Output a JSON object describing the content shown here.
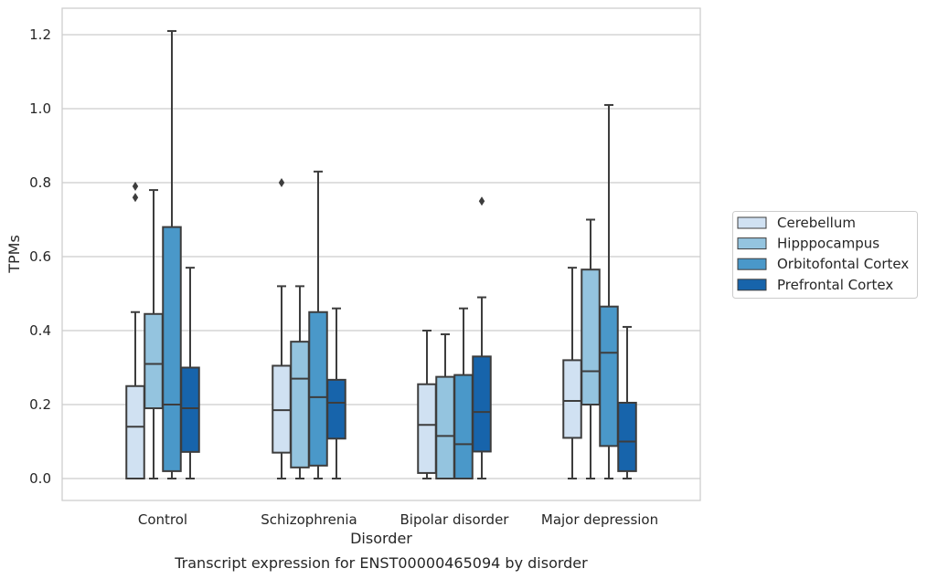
{
  "chart_data": {
    "type": "box",
    "xlabel": "Disorder",
    "ylabel": "TPMs",
    "caption": "Transcript expression for ENST00000465094 by disorder",
    "ylim": [
      -0.06,
      1.27
    ],
    "yticks": [
      "0.0",
      "0.2",
      "0.4",
      "0.6",
      "0.8",
      "1.0",
      "1.2"
    ],
    "ytick_values": [
      0.0,
      0.2,
      0.4,
      0.6,
      0.8,
      1.0,
      1.2
    ],
    "grid": "horizontal",
    "legend_position": "right",
    "categories": [
      "Control",
      "Schizophrenia",
      "Bipolar disorder",
      "Major depression"
    ],
    "series": [
      {
        "name": "Cerebellum",
        "color": "#d0e1f2",
        "boxes": [
          {
            "whislo": 0.0,
            "q1": 0.0,
            "med": 0.14,
            "q3": 0.25,
            "whishi": 0.45,
            "fliers": [
              0.76,
              0.79
            ]
          },
          {
            "whislo": 0.0,
            "q1": 0.07,
            "med": 0.185,
            "q3": 0.305,
            "whishi": 0.52,
            "fliers": [
              0.8
            ]
          },
          {
            "whislo": 0.0,
            "q1": 0.015,
            "med": 0.145,
            "q3": 0.255,
            "whishi": 0.4,
            "fliers": []
          },
          {
            "whislo": 0.0,
            "q1": 0.11,
            "med": 0.21,
            "q3": 0.32,
            "whishi": 0.57,
            "fliers": []
          }
        ]
      },
      {
        "name": "Hipppocampus",
        "color": "#94c4df",
        "boxes": [
          {
            "whislo": 0.0,
            "q1": 0.19,
            "med": 0.31,
            "q3": 0.445,
            "whishi": 0.78,
            "fliers": []
          },
          {
            "whislo": 0.0,
            "q1": 0.03,
            "med": 0.27,
            "q3": 0.37,
            "whishi": 0.52,
            "fliers": []
          },
          {
            "whislo": 0.0,
            "q1": 0.0,
            "med": 0.115,
            "q3": 0.275,
            "whishi": 0.39,
            "fliers": []
          },
          {
            "whislo": 0.0,
            "q1": 0.2,
            "med": 0.29,
            "q3": 0.565,
            "whishi": 0.7,
            "fliers": []
          }
        ]
      },
      {
        "name": "Orbitofontal Cortex",
        "color": "#4a98c9",
        "boxes": [
          {
            "whislo": 0.0,
            "q1": 0.02,
            "med": 0.2,
            "q3": 0.68,
            "whishi": 1.21,
            "fliers": []
          },
          {
            "whislo": 0.0,
            "q1": 0.035,
            "med": 0.22,
            "q3": 0.45,
            "whishi": 0.83,
            "fliers": []
          },
          {
            "whislo": 0.0,
            "q1": 0.0,
            "med": 0.093,
            "q3": 0.28,
            "whishi": 0.46,
            "fliers": []
          },
          {
            "whislo": 0.0,
            "q1": 0.088,
            "med": 0.34,
            "q3": 0.465,
            "whishi": 1.01,
            "fliers": []
          }
        ]
      },
      {
        "name": "Prefrontal Cortex",
        "color": "#1764ab",
        "boxes": [
          {
            "whislo": 0.0,
            "q1": 0.072,
            "med": 0.19,
            "q3": 0.3,
            "whishi": 0.57,
            "fliers": []
          },
          {
            "whislo": 0.0,
            "q1": 0.108,
            "med": 0.205,
            "q3": 0.267,
            "whishi": 0.46,
            "fliers": []
          },
          {
            "whislo": 0.0,
            "q1": 0.073,
            "med": 0.18,
            "q3": 0.33,
            "whishi": 0.49,
            "fliers": [
              0.75
            ]
          },
          {
            "whislo": 0.0,
            "q1": 0.02,
            "med": 0.1,
            "q3": 0.205,
            "whishi": 0.41,
            "fliers": []
          }
        ]
      }
    ]
  }
}
